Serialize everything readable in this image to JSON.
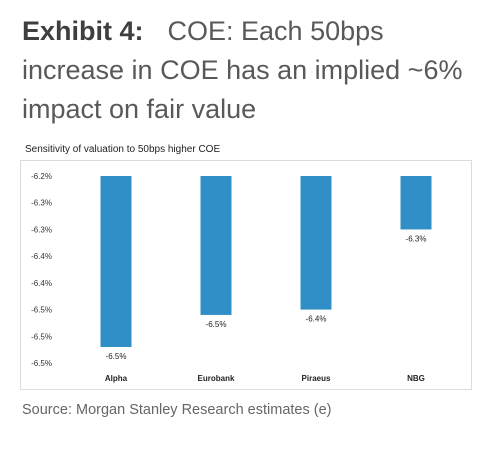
{
  "header": {
    "exhibit_label": "Exhibit 4:",
    "title": "COE: Each 50bps increase in COE has an implied ~6% impact on fair value"
  },
  "source": "Source: Morgan Stanley Research estimates (e)",
  "chart_data": {
    "type": "bar",
    "title": "Sensitivity of valuation to 50bps higher COE",
    "xlabel": "",
    "ylabel": "",
    "categories": [
      "Alpha",
      "Eurobank",
      "Piraeus",
      "NBG"
    ],
    "values": [
      -6.52,
      -6.46,
      -6.45,
      -6.3
    ],
    "data_labels": [
      "-6.5%",
      "-6.5%",
      "-6.4%",
      "-6.3%"
    ],
    "y_ticks": [
      -6.2,
      -6.25,
      -6.3,
      -6.35,
      -6.4,
      -6.45,
      -6.5,
      -6.55
    ],
    "y_tick_labels": [
      "-6.2%",
      "-6.3%",
      "-6.3%",
      "-6.4%",
      "-6.4%",
      "-6.5%",
      "-6.5%",
      "-6.5%"
    ],
    "ylim": [
      -6.55,
      -6.2
    ],
    "bar_color": "#2f8fc6",
    "grid": false,
    "legend": "none"
  }
}
